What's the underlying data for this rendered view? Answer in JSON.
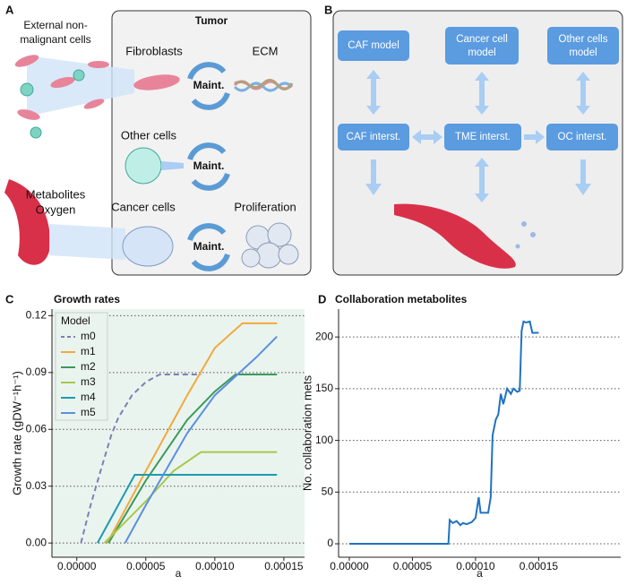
{
  "panel_a": {
    "label": "A",
    "title": "Tumor",
    "external_lines": [
      "External non-",
      "malignant cells"
    ],
    "fibroblasts": "Fibroblasts",
    "ecm": "ECM",
    "maint": [
      "Maint.",
      "Maint.",
      "Maint."
    ],
    "other_cells": "Other cells",
    "metabolites": "Metabolites",
    "oxygen": "Oxygen",
    "cancer_cells": "Cancer cells",
    "proliferation": "Proliferation"
  },
  "panel_b": {
    "label": "B",
    "models": [
      [
        "CAF model"
      ],
      [
        "Cancer cell",
        "model"
      ],
      [
        "Other cells",
        "model"
      ]
    ],
    "interstitials": [
      "CAF interst.",
      "TME interst.",
      "OC interst."
    ]
  },
  "chart_data": [
    {
      "label": "C",
      "type": "line",
      "title": "Growth rates",
      "xlabel": "a",
      "ylabel": "Growth rate (gDW⁻¹h⁻¹)",
      "background": "#eaf4ef",
      "grid": true,
      "legend": "upper left",
      "legend_title": "Model",
      "xlim": [
        -1.8e-05,
        0.000165
      ],
      "ylim": [
        -0.0075,
        0.1235
      ],
      "xticks": [
        {
          "value": 0,
          "label": "0.00000"
        },
        5e-05,
        {
          "value": 0.0001,
          "label": "0.00010"
        },
        {
          "value": 0.00015,
          "label": "0.00015"
        }
      ],
      "yticks": [
        {
          "value": 0,
          "label": "0.00"
        },
        0.03,
        0.06,
        0.09,
        0.12
      ],
      "series": [
        {
          "name": "m0",
          "color": "#7c80b5",
          "linestyle": "dashed",
          "x": [
            3e-06,
            1e-05,
            1.8e-05,
            2.5e-05,
            3e-05,
            3.5e-05,
            4e-05,
            5e-05,
            6e-05,
            7e-05,
            9e-05
          ],
          "values": [
            0,
            0.02,
            0.04,
            0.057,
            0.066,
            0.072,
            0.078,
            0.085,
            0.089,
            0.089,
            0.089
          ]
        },
        {
          "name": "m1",
          "color": "#f2a93b",
          "x": [
            2.2e-05,
            5e-05,
            8e-05,
            0.0001,
            0.00012,
            0.000145
          ],
          "values": [
            0,
            0.038,
            0.078,
            0.103,
            0.116,
            0.116
          ]
        },
        {
          "name": "m2",
          "color": "#3a9a5a",
          "x": [
            2.3e-05,
            5e-05,
            8e-05,
            0.0001,
            0.000115,
            0.000145
          ],
          "values": [
            0,
            0.033,
            0.065,
            0.08,
            0.089,
            0.089
          ]
        },
        {
          "name": "m3",
          "color": "#a8c84a",
          "x": [
            2e-05,
            5e-05,
            7e-05,
            9e-05,
            0.000145
          ],
          "values": [
            0,
            0.022,
            0.038,
            0.048,
            0.048
          ]
        },
        {
          "name": "m4",
          "color": "#1e9ab0",
          "x": [
            1.5e-05,
            4.2e-05,
            0.000145
          ],
          "values": [
            0,
            0.036,
            0.036
          ]
        },
        {
          "name": "m5",
          "color": "#5b8fe0",
          "x": [
            3.5e-05,
            5e-05,
            8e-05,
            0.0001,
            0.00013,
            0.000145
          ],
          "values": [
            0,
            0.02,
            0.058,
            0.078,
            0.098,
            0.109
          ]
        }
      ]
    },
    {
      "label": "D",
      "type": "line",
      "title": "Collaboration metabolites",
      "xlabel": "a",
      "ylabel": "No. collaboration mets",
      "color": "#1f73c0",
      "grid": true,
      "xlim": [
        -8.5e-06,
        0.000215
      ],
      "ylim": [
        -13,
        227
      ],
      "xticks": [
        {
          "value": 0,
          "label": "0.00000"
        },
        5e-05,
        {
          "value": 0.0001,
          "label": "0.00010"
        },
        {
          "value": 0.00015,
          "label": "0.00015"
        }
      ],
      "yticks": [
        0,
        50,
        100,
        150,
        200
      ],
      "x": [
        0,
        7.85e-05,
        7.95e-05,
        8.2e-05,
        8.5e-05,
        8.8e-05,
        9e-05,
        9.3e-05,
        9.7e-05,
        0.0001,
        0.0001025,
        0.000104,
        0.00011,
        0.000112,
        0.0001135,
        0.000116,
        0.000118,
        0.00012,
        0.000122,
        0.000125,
        0.000128,
        0.00013,
        0.000133,
        0.000135,
        0.0001365,
        0.000138,
        0.00014,
        0.000143,
        0.000145,
        0.00015
      ],
      "values": [
        0,
        0,
        23,
        20,
        22,
        18,
        20,
        19,
        21,
        25,
        45,
        30,
        30,
        45,
        105,
        120,
        125,
        145,
        135,
        150,
        145,
        150,
        147,
        148,
        206,
        215,
        214,
        215,
        204,
        204
      ]
    }
  ]
}
